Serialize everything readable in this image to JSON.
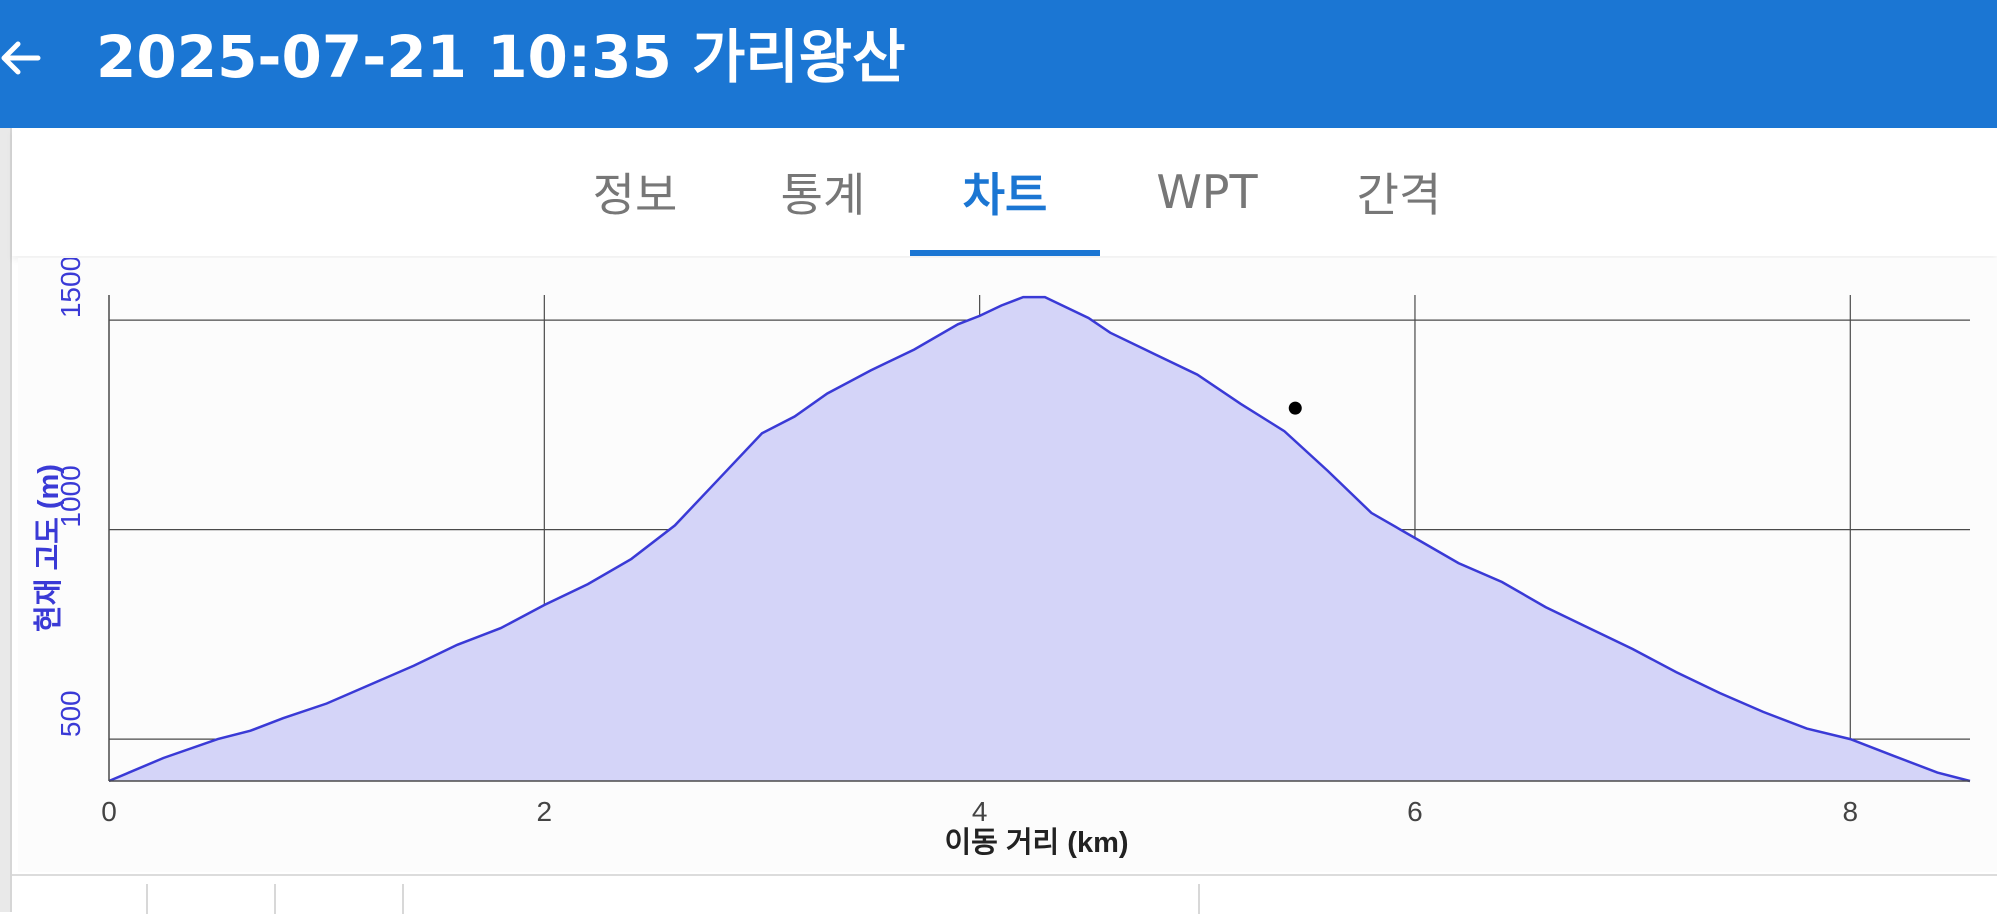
{
  "header": {
    "title": "2025-07-21 10:35 가리왕산",
    "back_icon": "arrow-left-icon",
    "background_color": "#1b76d3"
  },
  "tabs": [
    {
      "label": "정보",
      "active": false
    },
    {
      "label": "통계",
      "active": false
    },
    {
      "label": "차트",
      "active": true
    },
    {
      "label": "WPT",
      "active": false
    },
    {
      "label": "간격",
      "active": false
    }
  ],
  "chart_data": {
    "type": "area",
    "xlabel": "이동 거리 (km)",
    "ylabel": "현재 고도 (m)",
    "xlim": [
      0,
      8.55
    ],
    "ylim": [
      400,
      1560
    ],
    "x_ticks": [
      0,
      2,
      4,
      6,
      8
    ],
    "y_ticks": [
      500,
      1000,
      1500
    ],
    "grid": true,
    "line_color": "#3a3ad6",
    "fill_color": "#d4d4f8",
    "series": [
      {
        "x": [
          0,
          0.25,
          0.5,
          0.65,
          0.8,
          1.0,
          1.2,
          1.4,
          1.6,
          1.8,
          2.0,
          2.2,
          2.4,
          2.6,
          2.8,
          3.0,
          3.15,
          3.3,
          3.5,
          3.7,
          3.9,
          4.0,
          4.1,
          4.2,
          4.3,
          4.5,
          4.6,
          4.8,
          5.0,
          5.2,
          5.4,
          5.6,
          5.8,
          6.0,
          6.2,
          6.4,
          6.6,
          6.8,
          7.0,
          7.2,
          7.4,
          7.6,
          7.8,
          8.0,
          8.2,
          8.4,
          8.55
        ],
        "y": [
          400,
          455,
          500,
          520,
          550,
          585,
          630,
          675,
          725,
          765,
          820,
          870,
          930,
          1010,
          1120,
          1230,
          1270,
          1325,
          1380,
          1430,
          1490,
          1510,
          1535,
          1555,
          1555,
          1505,
          1470,
          1420,
          1370,
          1300,
          1235,
          1140,
          1040,
          980,
          920,
          875,
          815,
          765,
          715,
          660,
          610,
          565,
          525,
          500,
          460,
          420,
          400
        ]
      }
    ],
    "marker": {
      "x": 5.45,
      "y": 1290
    }
  }
}
